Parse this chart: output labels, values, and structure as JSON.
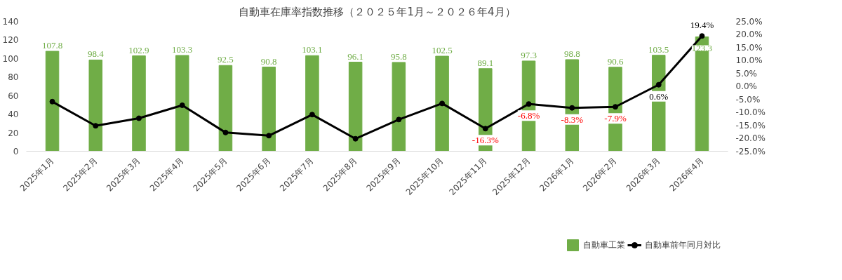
{
  "chart_data": {
    "type": "bar",
    "title": "自動車在庫率指数推移（２０２５年1月～２０２６年4月）",
    "categories": [
      "2025年1月",
      "2025年2月",
      "2025年3月",
      "2025年4月",
      "2025年5月",
      "2025年6月",
      "2025年7月",
      "2025年8月",
      "2025年9月",
      "2025年10月",
      "2025年11月",
      "2025年12月",
      "2026年1月",
      "2026年2月",
      "2026年3月",
      "2026年4月"
    ],
    "series": [
      {
        "name": "自動車工業",
        "color": "#70ad47",
        "values": [
          107.8,
          98.4,
          102.9,
          103.3,
          92.5,
          90.8,
          103.1,
          96.1,
          95.8,
          102.5,
          89.1,
          97.3,
          98.8,
          90.6,
          103.5,
          123.3
        ]
      },
      {
        "name": "自動車前年同月対比",
        "type": "line",
        "axis": "y2",
        "color": "#000000",
        "marker": "circle",
        "values": [
          -5.9,
          -15.2,
          -12.3,
          -7.3,
          -17.8,
          -19.0,
          -10.9,
          -20.2,
          -12.8,
          -6.6,
          -16.3,
          -6.8,
          -8.3,
          -7.9,
          0.6,
          19.4
        ],
        "value_labels": [
          null,
          null,
          null,
          null,
          null,
          null,
          null,
          null,
          null,
          null,
          "-16.3%",
          "-6.8%",
          "-8.3%",
          "-7.9%",
          "0.6%",
          "19.4%"
        ]
      }
    ],
    "data_labels": true,
    "ylim": [
      0,
      140
    ],
    "yticks": [
      0,
      20,
      40,
      60,
      80,
      100,
      120,
      140
    ],
    "y2lim": [
      -25,
      25
    ],
    "y2ticks": [
      {
        "value": -25,
        "label": "-25.0%"
      },
      {
        "value": -20,
        "label": "-20.0%"
      },
      {
        "value": -15,
        "label": "-15.0%"
      },
      {
        "value": -10,
        "label": "-10.0%"
      },
      {
        "value": -5,
        "label": "-5.0%"
      },
      {
        "value": 0,
        "label": "0.0%"
      },
      {
        "value": 5,
        "label": "5.0%"
      },
      {
        "value": 10,
        "label": "10.0%"
      },
      {
        "value": 15,
        "label": "15.0%"
      },
      {
        "value": 20,
        "label": "20.0%"
      },
      {
        "value": 25,
        "label": "25.0%"
      }
    ],
    "grid": false,
    "legend": "bottom"
  }
}
